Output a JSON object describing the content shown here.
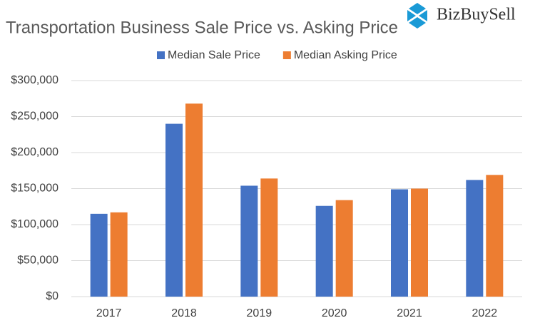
{
  "chart_data": {
    "type": "bar",
    "title": "Transportation Business Sale Price vs. Asking Price",
    "logo": "BizBuySell",
    "categories": [
      "2017",
      "2018",
      "2019",
      "2020",
      "2021",
      "2022"
    ],
    "series": [
      {
        "name": "Median Sale Price",
        "color": "#4472c4",
        "values": [
          115000,
          240000,
          154000,
          126000,
          149000,
          162000
        ]
      },
      {
        "name": "Median Asking Price",
        "color": "#ed7d31",
        "values": [
          117000,
          268000,
          164000,
          134000,
          150000,
          169000
        ]
      }
    ],
    "ylim": [
      0,
      300000
    ],
    "yticks": [
      {
        "value": 0,
        "label": "$0"
      },
      {
        "value": 50000,
        "label": "$50,000"
      },
      {
        "value": 100000,
        "label": "$100,000"
      },
      {
        "value": 150000,
        "label": "$150,000"
      },
      {
        "value": 200000,
        "label": "$200,000"
      },
      {
        "value": 250000,
        "label": "$250,000"
      },
      {
        "value": 300000,
        "label": "$300,000"
      }
    ],
    "grid": true,
    "legend": "top"
  }
}
